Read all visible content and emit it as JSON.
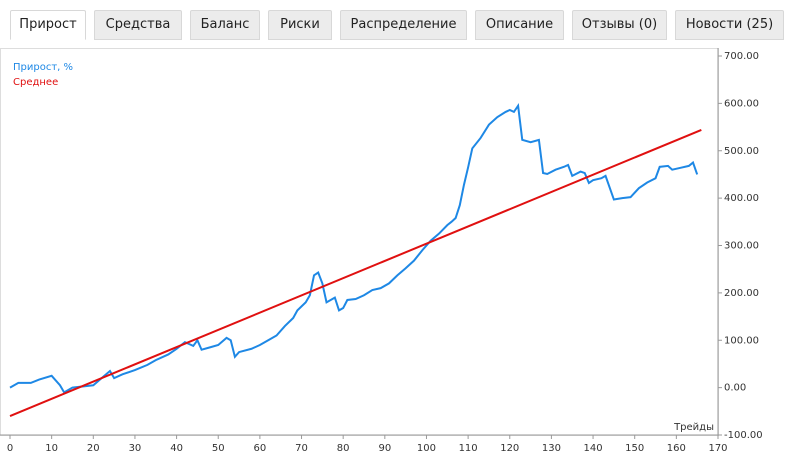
{
  "tabs": [
    "Прирост",
    "Средства",
    "Баланс",
    "Риски",
    "Распределение",
    "Описание",
    "Отзывы (0)",
    "Новости (25)"
  ],
  "chart_data": {
    "type": "line",
    "x_label": "Трейды",
    "series": [
      {
        "name": "Прирост, %",
        "color": "#1e88e5",
        "x": [
          0,
          2,
          5,
          7,
          10,
          12,
          13,
          15,
          20,
          22,
          24,
          25,
          27,
          30,
          33,
          35,
          38,
          40,
          42,
          44,
          45,
          46,
          48,
          50,
          52,
          53,
          54,
          55,
          58,
          60,
          62,
          64,
          66,
          68,
          69,
          71,
          72,
          73,
          74,
          75,
          76,
          78,
          79,
          80,
          81,
          83,
          85,
          87,
          89,
          91,
          93,
          95,
          97,
          99,
          101,
          103,
          105,
          106,
          107,
          108,
          109,
          110,
          111,
          113,
          115,
          117,
          119,
          120,
          121,
          122,
          123,
          125,
          127,
          128,
          129,
          131,
          133,
          134,
          135,
          137,
          138,
          139,
          140,
          142,
          143,
          145,
          147,
          149,
          151,
          153,
          155,
          156,
          158,
          159,
          161,
          163,
          164,
          165
        ],
        "values": [
          0,
          10,
          10,
          17,
          25,
          5,
          -10,
          0,
          5,
          20,
          35,
          20,
          28,
          37,
          48,
          58,
          70,
          82,
          96,
          88,
          100,
          80,
          85,
          90,
          105,
          100,
          65,
          75,
          82,
          90,
          100,
          110,
          130,
          147,
          163,
          180,
          195,
          237,
          243,
          220,
          180,
          190,
          163,
          168,
          185,
          187,
          195,
          206,
          210,
          220,
          237,
          252,
          268,
          290,
          310,
          325,
          343,
          350,
          358,
          385,
          428,
          465,
          505,
          527,
          555,
          571,
          582,
          586,
          582,
          595,
          523,
          518,
          523,
          453,
          451,
          460,
          466,
          470,
          447,
          456,
          453,
          432,
          438,
          442,
          447,
          397,
          400,
          402,
          421,
          433,
          442,
          466,
          468,
          460,
          464,
          468,
          475,
          450
        ]
      },
      {
        "name": "Среднее",
        "color": "#e01010",
        "x": [
          0,
          166
        ],
        "values": [
          -60,
          544
        ]
      }
    ],
    "xlim": [
      0,
      170
    ],
    "xticks": [
      0,
      10,
      20,
      30,
      40,
      50,
      60,
      70,
      80,
      90,
      100,
      110,
      120,
      130,
      140,
      150,
      160,
      170
    ],
    "ylim": [
      -100,
      700
    ],
    "yticks": [
      {
        "value": -100,
        "label": "-100.00"
      },
      {
        "value": 0,
        "label": "0.00"
      },
      {
        "value": 100,
        "label": "100.00"
      },
      {
        "value": 200,
        "label": "200.00"
      },
      {
        "value": 300,
        "label": "300.00"
      },
      {
        "value": 400,
        "label": "400.00"
      },
      {
        "value": 500,
        "label": "500.00"
      },
      {
        "value": 600,
        "label": "600.00"
      },
      {
        "value": 700,
        "label": "700.00"
      }
    ]
  }
}
